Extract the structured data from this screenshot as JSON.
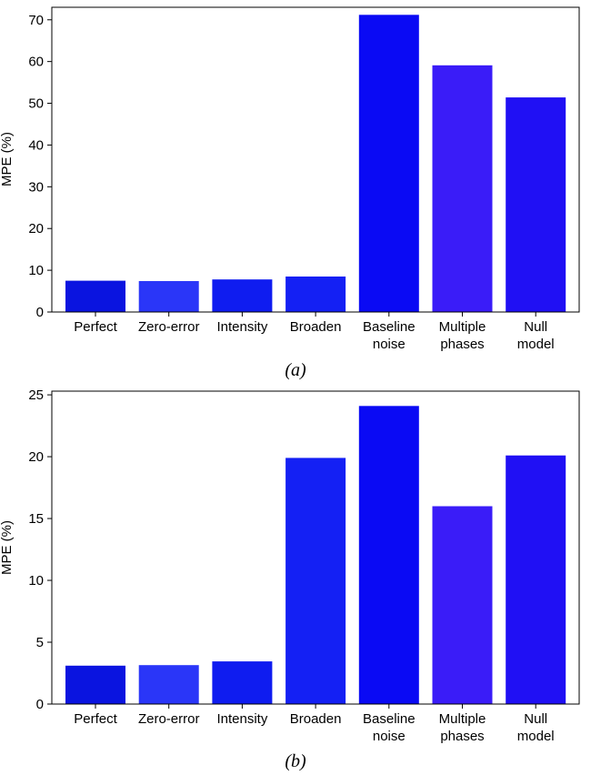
{
  "chart_data": [
    {
      "type": "bar",
      "panel_label": "(a)",
      "ylabel": "MPE (%)",
      "xlabel": "",
      "ylim": [
        0,
        73
      ],
      "yticks": [
        0,
        10,
        20,
        30,
        40,
        50,
        60,
        70
      ],
      "categories": [
        [
          "Perfect"
        ],
        [
          "Zero-error"
        ],
        [
          "Intensity"
        ],
        [
          "Broaden"
        ],
        [
          "Baseline",
          "noise"
        ],
        [
          "Multiple",
          "phases"
        ],
        [
          "Null",
          "model"
        ]
      ],
      "values": [
        7.5,
        7.4,
        7.8,
        8.5,
        71.2,
        59.1,
        51.4
      ],
      "colors": [
        "#0a14e0",
        "#2a36f8",
        "#0f1cf0",
        "#1420f4",
        "#0a0af4",
        "#3a1cf8",
        "#2010f4"
      ]
    },
    {
      "type": "bar",
      "panel_label": "(b)",
      "ylabel": "MPE (%)",
      "xlabel": "",
      "ylim": [
        0,
        25.3
      ],
      "yticks": [
        0,
        5,
        10,
        15,
        20,
        25
      ],
      "categories": [
        [
          "Perfect"
        ],
        [
          "Zero-error"
        ],
        [
          "Intensity"
        ],
        [
          "Broaden"
        ],
        [
          "Baseline",
          "noise"
        ],
        [
          "Multiple",
          "phases"
        ],
        [
          "Null",
          "model"
        ]
      ],
      "values": [
        3.1,
        3.15,
        3.45,
        19.9,
        24.1,
        16.0,
        20.1
      ],
      "colors": [
        "#0a14e0",
        "#2a36f8",
        "#0f1cf0",
        "#1420f4",
        "#0a0af4",
        "#3a1cf8",
        "#2010f4"
      ]
    }
  ]
}
